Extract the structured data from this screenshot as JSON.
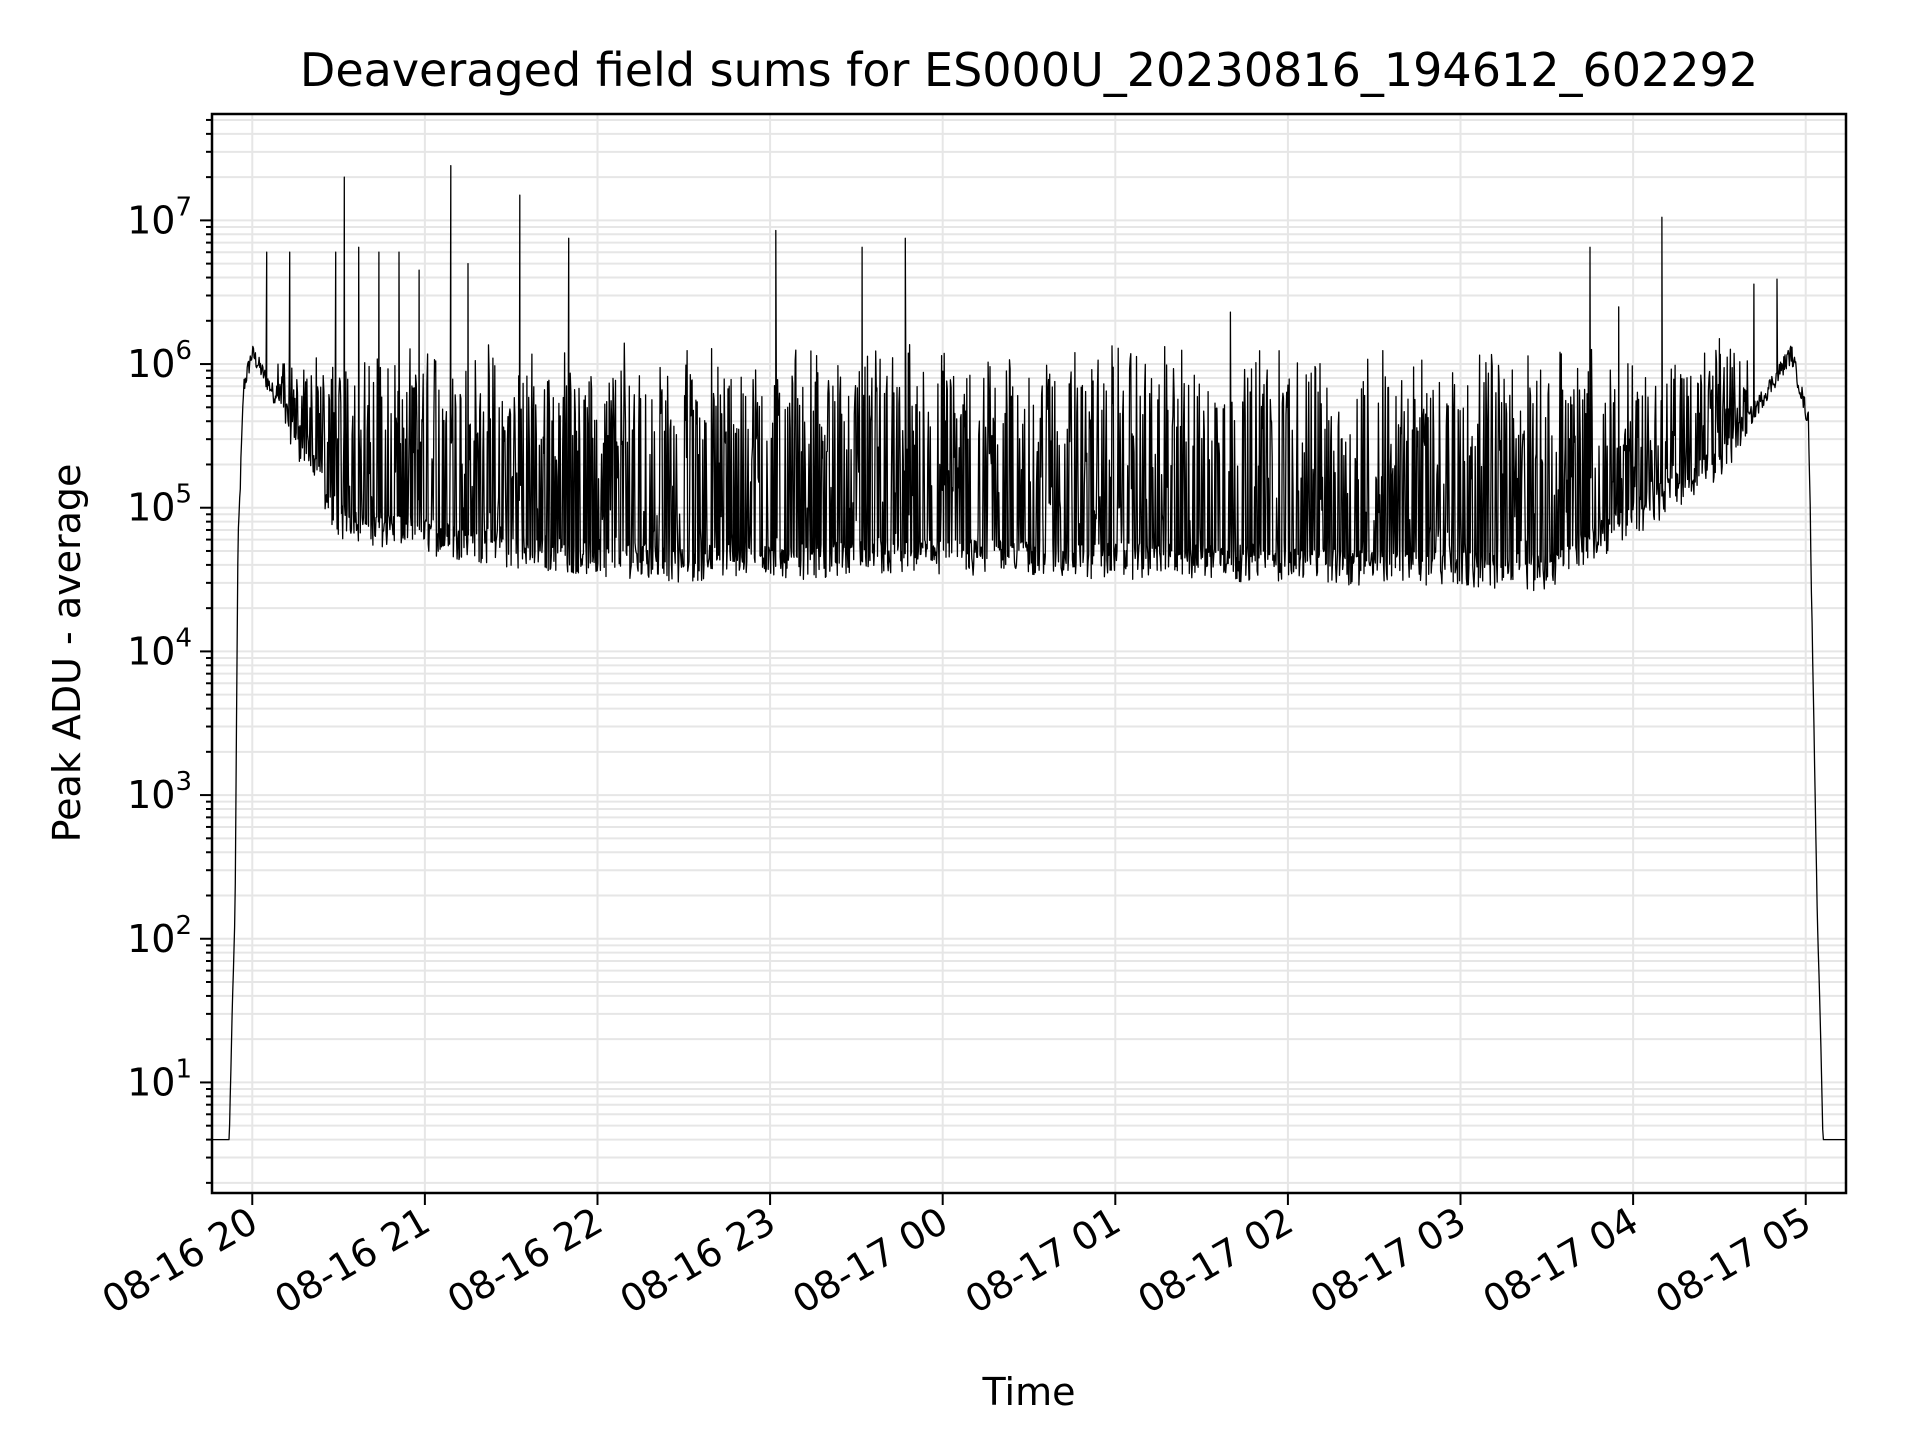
{
  "chart_data": {
    "type": "line",
    "title": "Deaveraged field sums for ES000U_20230816_194612_602292",
    "xlabel": "Time",
    "ylabel": "Peak ADU - average",
    "yscale": "log",
    "grid": "on (major and minor)",
    "line_color": "#000000",
    "xlim": [
      "2023-08-16 19:46",
      "2023-08-17 05:14"
    ],
    "ylim": [
      1.7,
      55000000
    ],
    "x_ticks": [
      "08-16 20",
      "08-16 21",
      "08-16 22",
      "08-16 23",
      "08-17 00",
      "08-17 01",
      "08-17 02",
      "08-17 03",
      "08-17 04",
      "08-17 05"
    ],
    "y_ticks": [
      {
        "base": "10",
        "exp": "1",
        "value": 10
      },
      {
        "base": "10",
        "exp": "2",
        "value": 100
      },
      {
        "base": "10",
        "exp": "3",
        "value": 1000
      },
      {
        "base": "10",
        "exp": "4",
        "value": 10000
      },
      {
        "base": "10",
        "exp": "5",
        "value": 100000
      },
      {
        "base": "10",
        "exp": "6",
        "value": 1000000
      },
      {
        "base": "10",
        "exp": "7",
        "value": 10000000
      }
    ],
    "series": [
      {
        "envelope_points": [
          {
            "t": "2023-08-16 19:46",
            "y": 4
          },
          {
            "t": "2023-08-16 19:52",
            "y": 4
          },
          {
            "t": "2023-08-16 19:53",
            "y": 30
          },
          {
            "t": "2023-08-16 19:54",
            "y": 150
          },
          {
            "t": "2023-08-16 19:55",
            "y": 50000
          },
          {
            "t": "2023-08-16 19:57",
            "y": 700000
          },
          {
            "t": "2023-08-16 20:00",
            "y": 1200000
          },
          {
            "t": "2023-08-16 20:10",
            "y": 500000
          },
          {
            "t": "2023-08-16 20:30",
            "y": 80000
          },
          {
            "t": "2023-08-16 21:30",
            "y": 50000
          },
          {
            "t": "2023-08-16 22:30",
            "y": 40000
          },
          {
            "t": "2023-08-17 00:00",
            "y": 45000
          },
          {
            "t": "2023-08-17 02:00",
            "y": 40000
          },
          {
            "t": "2023-08-17 03:30",
            "y": 35000
          },
          {
            "t": "2023-08-17 04:30",
            "y": 200000
          },
          {
            "t": "2023-08-17 04:55",
            "y": 1200000
          },
          {
            "t": "2023-08-17 05:01",
            "y": 400000
          },
          {
            "t": "2023-08-17 05:04",
            "y": 150
          },
          {
            "t": "2023-08-17 05:05",
            "y": 30
          },
          {
            "t": "2023-08-17 05:06",
            "y": 4
          },
          {
            "t": "2023-08-17 05:14",
            "y": 4
          }
        ],
        "spikes": [
          {
            "t": "2023-08-16 20:05",
            "y": 6000000
          },
          {
            "t": "2023-08-16 20:13",
            "y": 6000000
          },
          {
            "t": "2023-08-16 20:29",
            "y": 6000000
          },
          {
            "t": "2023-08-16 20:32",
            "y": 20000000
          },
          {
            "t": "2023-08-16 20:37",
            "y": 6500000
          },
          {
            "t": "2023-08-16 20:44",
            "y": 6000000
          },
          {
            "t": "2023-08-16 20:51",
            "y": 6000000
          },
          {
            "t": "2023-08-16 20:58",
            "y": 4500000
          },
          {
            "t": "2023-08-16 21:09",
            "y": 24000000
          },
          {
            "t": "2023-08-16 21:15",
            "y": 5000000
          },
          {
            "t": "2023-08-16 21:33",
            "y": 15000000
          },
          {
            "t": "2023-08-16 21:50",
            "y": 7500000
          },
          {
            "t": "2023-08-16 23:02",
            "y": 8500000
          },
          {
            "t": "2023-08-16 23:32",
            "y": 6500000
          },
          {
            "t": "2023-08-16 23:47",
            "y": 7500000
          },
          {
            "t": "2023-08-17 01:40",
            "y": 2300000
          },
          {
            "t": "2023-08-17 03:45",
            "y": 6500000
          },
          {
            "t": "2023-08-17 03:55",
            "y": 2500000
          },
          {
            "t": "2023-08-17 04:10",
            "y": 10500000
          },
          {
            "t": "2023-08-17 04:30",
            "y": 1500000
          },
          {
            "t": "2023-08-17 04:42",
            "y": 3600000
          },
          {
            "t": "2023-08-17 04:50",
            "y": 3900000
          }
        ]
      }
    ]
  }
}
